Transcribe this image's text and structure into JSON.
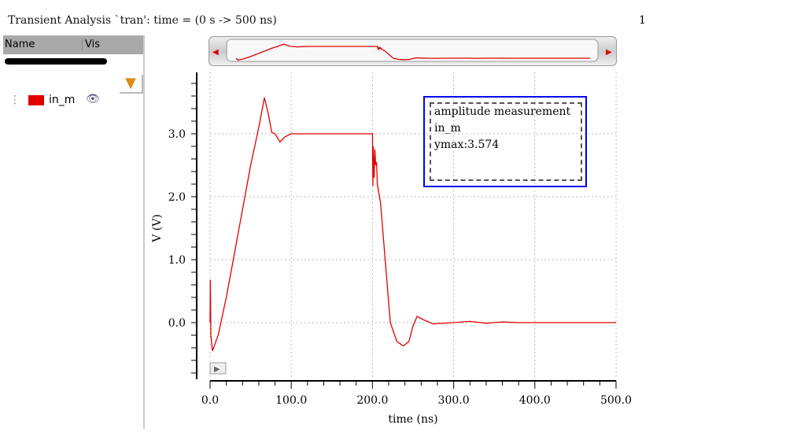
{
  "title": "Transient Analysis `tran': time = (0 s -> 500 ns)",
  "page_number": "1",
  "panel": {
    "col_name": "Name",
    "col_vis": "Vis",
    "signals": [
      {
        "name": "in_m",
        "color": "#e00000"
      }
    ]
  },
  "marker": {
    "lines": [
      "amplitude measurement",
      "in_m",
      "ymax:3.574"
    ]
  },
  "chart_data": {
    "type": "line",
    "xlabel": "time (ns)",
    "ylabel": "V (V)",
    "xlim": [
      0,
      500
    ],
    "ylim": [
      -0.875,
      3.975
    ],
    "xticks": [
      "0.0",
      "100.0",
      "200.0",
      "300.0",
      "400.0",
      "500.0"
    ],
    "yticks": [
      "0.0",
      "1.0",
      "2.0",
      "3.0"
    ],
    "grid": true,
    "series": [
      {
        "name": "in_m",
        "color": "#e00000",
        "x": [
          0,
          0.3,
          0.6,
          1,
          3,
          10,
          20,
          30,
          40,
          50,
          60,
          67,
          72,
          76,
          80,
          86,
          92,
          100,
          110,
          200,
          200.5,
          201,
          202,
          203,
          204,
          205,
          206,
          210,
          215,
          222,
          230,
          238,
          245,
          250,
          255,
          262,
          275,
          300,
          320,
          340,
          360,
          380,
          400,
          500
        ],
        "y": [
          0,
          0.68,
          0.35,
          -0.2,
          -0.45,
          -0.2,
          0.4,
          1.1,
          1.8,
          2.5,
          3.1,
          3.574,
          3.3,
          3.02,
          3.0,
          2.87,
          2.95,
          3.0,
          3.0,
          3.0,
          2.17,
          2.8,
          2.3,
          2.75,
          2.5,
          2.55,
          2.2,
          1.9,
          1.1,
          0.0,
          -0.3,
          -0.37,
          -0.3,
          -0.05,
          0.1,
          0.05,
          -0.02,
          0.0,
          0.02,
          -0.01,
          0.01,
          0.0,
          0.0,
          0.0
        ]
      }
    ]
  }
}
